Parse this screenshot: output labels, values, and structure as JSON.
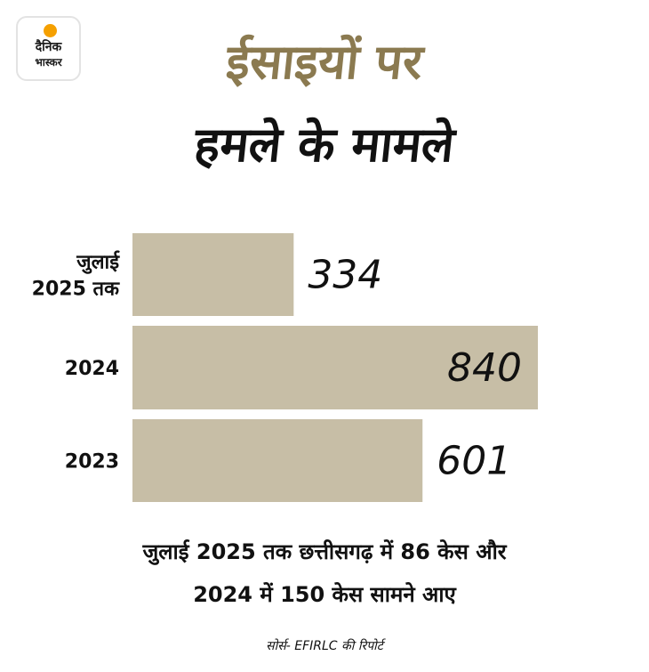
{
  "brand": {
    "name_line1": "दैनिक",
    "name_line2": "भास्कर",
    "icon": "sun-icon"
  },
  "title": {
    "line1": "ईसाइयों पर",
    "line2": "हमले के मामले",
    "accent_color": "#8b7a50"
  },
  "colors": {
    "bar": "#c7bea6",
    "text": "#111111"
  },
  "chart_data": {
    "type": "bar",
    "orientation": "horizontal",
    "categories": [
      "जुलाई 2025 तक",
      "2024",
      "2023"
    ],
    "category_lines": [
      [
        "जुलाई",
        "2025 तक"
      ],
      [
        "2024"
      ],
      [
        "2023"
      ]
    ],
    "values": [
      334,
      840,
      601
    ],
    "value_labels": [
      "334",
      "840",
      "601"
    ],
    "xlim": [
      0,
      840
    ],
    "grid": false,
    "legend": "none"
  },
  "note": {
    "line1": "जुलाई 2025 तक छत्तीसगढ़ में 86 केस और",
    "line2": "2024 में 150 केस सामने आए"
  },
  "source": "सोर्स- EFIRLC की रिपोर्ट"
}
